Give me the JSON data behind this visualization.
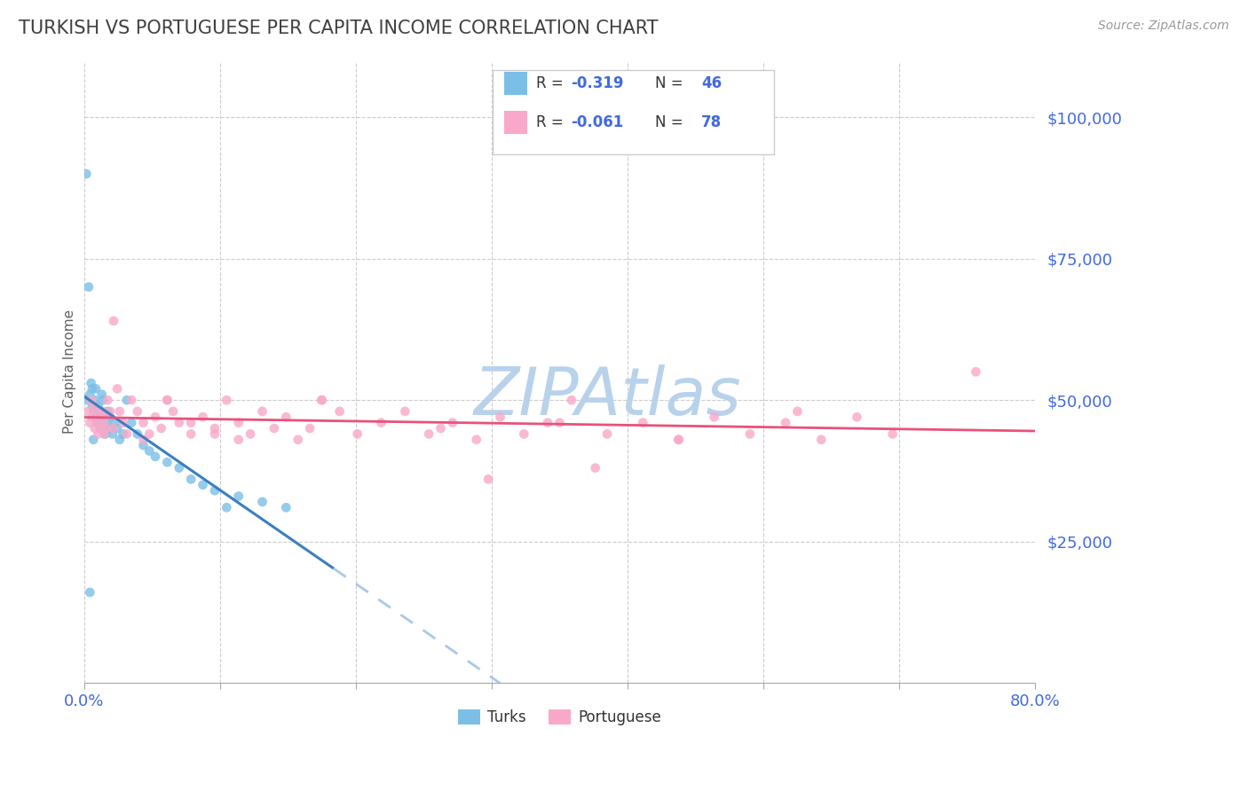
{
  "title": "TURKISH VS PORTUGUESE PER CAPITA INCOME CORRELATION CHART",
  "source": "Source: ZipAtlas.com",
  "ylabel": "Per Capita Income",
  "xlim": [
    0.0,
    0.8
  ],
  "ylim": [
    0,
    110000
  ],
  "yticks": [
    0,
    25000,
    50000,
    75000,
    100000
  ],
  "ytick_labels": [
    "",
    "$25,000",
    "$50,000",
    "$75,000",
    "$100,000"
  ],
  "xticks": [
    0.0,
    0.1143,
    0.2286,
    0.3429,
    0.4571,
    0.5714,
    0.6857,
    0.8
  ],
  "xtick_labels": [
    "0.0%",
    "",
    "",
    "",
    "",
    "",
    "",
    "80.0%"
  ],
  "turks_color": "#7bbfe6",
  "portuguese_color": "#f9a8c9",
  "turks_line_color": "#3a7fc1",
  "portuguese_line_color": "#e8527a",
  "dashed_line_color": "#a8c8e8",
  "background_color": "#ffffff",
  "grid_color": "#cccccc",
  "title_color": "#404040",
  "axis_label_color": "#606060",
  "tick_label_color": "#4169e1",
  "watermark": "ZIPAtlas",
  "watermark_color_r": 185,
  "watermark_color_g": 210,
  "watermark_color_b": 235,
  "turks_r": "-0.319",
  "turks_n": "46",
  "portuguese_r": "-0.061",
  "portuguese_n": "78",
  "turks_x": [
    0.002,
    0.003,
    0.004,
    0.005,
    0.006,
    0.007,
    0.007,
    0.008,
    0.009,
    0.01,
    0.01,
    0.011,
    0.012,
    0.013,
    0.014,
    0.015,
    0.015,
    0.016,
    0.017,
    0.018,
    0.019,
    0.02,
    0.021,
    0.022,
    0.024,
    0.026,
    0.028,
    0.03,
    0.033,
    0.036,
    0.04,
    0.045,
    0.05,
    0.055,
    0.06,
    0.07,
    0.08,
    0.09,
    0.1,
    0.11,
    0.13,
    0.15,
    0.17,
    0.005,
    0.008,
    0.12
  ],
  "turks_y": [
    90000,
    50000,
    70000,
    51000,
    53000,
    52000,
    49000,
    48000,
    50000,
    47000,
    52000,
    46000,
    49000,
    47000,
    45000,
    51000,
    48000,
    50000,
    47000,
    44000,
    46000,
    48000,
    45000,
    47000,
    44000,
    46000,
    45000,
    43000,
    44000,
    50000,
    46000,
    44000,
    42000,
    41000,
    40000,
    39000,
    38000,
    36000,
    35000,
    34000,
    33000,
    32000,
    31000,
    16000,
    43000,
    31000
  ],
  "portuguese_x": [
    0.003,
    0.005,
    0.006,
    0.007,
    0.008,
    0.009,
    0.01,
    0.011,
    0.012,
    0.013,
    0.014,
    0.015,
    0.016,
    0.017,
    0.018,
    0.019,
    0.02,
    0.022,
    0.025,
    0.028,
    0.03,
    0.033,
    0.036,
    0.04,
    0.045,
    0.05,
    0.055,
    0.06,
    0.065,
    0.07,
    0.075,
    0.08,
    0.09,
    0.1,
    0.11,
    0.12,
    0.13,
    0.14,
    0.15,
    0.16,
    0.17,
    0.18,
    0.19,
    0.2,
    0.215,
    0.23,
    0.25,
    0.27,
    0.29,
    0.31,
    0.33,
    0.35,
    0.37,
    0.39,
    0.41,
    0.44,
    0.47,
    0.5,
    0.53,
    0.56,
    0.59,
    0.62,
    0.65,
    0.68,
    0.05,
    0.025,
    0.07,
    0.09,
    0.11,
    0.13,
    0.2,
    0.3,
    0.4,
    0.5,
    0.6,
    0.34,
    0.43,
    0.75
  ],
  "portuguese_y": [
    48000,
    46000,
    50000,
    47000,
    49000,
    45000,
    48000,
    46000,
    44000,
    47000,
    45000,
    48000,
    46000,
    44000,
    47000,
    45000,
    50000,
    48000,
    64000,
    52000,
    48000,
    46000,
    44000,
    50000,
    48000,
    46000,
    44000,
    47000,
    45000,
    50000,
    48000,
    46000,
    44000,
    47000,
    45000,
    50000,
    46000,
    44000,
    48000,
    45000,
    47000,
    43000,
    45000,
    50000,
    48000,
    44000,
    46000,
    48000,
    44000,
    46000,
    43000,
    47000,
    44000,
    46000,
    50000,
    44000,
    46000,
    43000,
    47000,
    44000,
    46000,
    43000,
    47000,
    44000,
    43000,
    45000,
    50000,
    46000,
    44000,
    43000,
    50000,
    45000,
    46000,
    43000,
    48000,
    36000,
    38000,
    55000
  ]
}
